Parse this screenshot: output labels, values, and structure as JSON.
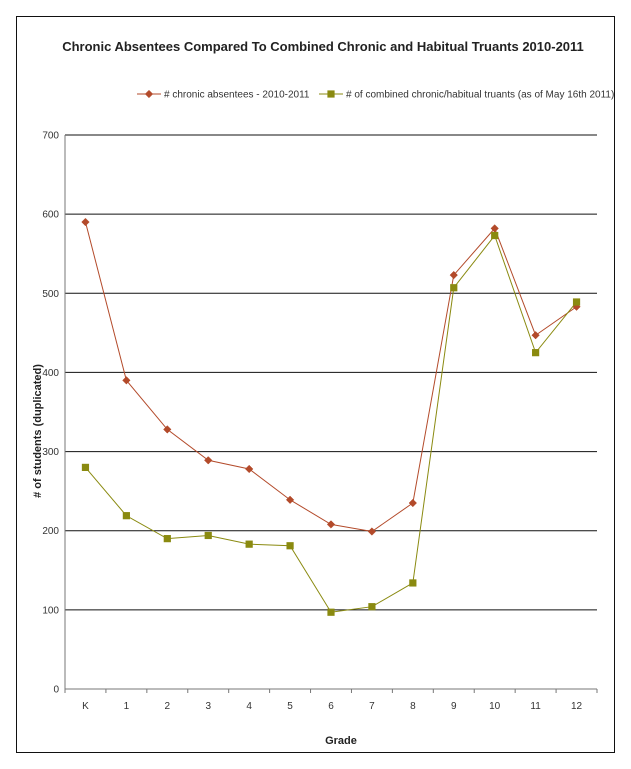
{
  "chart_data": {
    "type": "line",
    "title": "Chronic Absentees Compared To Combined Chronic and Habitual Truants 2010-2011",
    "xlabel": "Grade",
    "ylabel": "# of students (duplicated)",
    "categories": [
      "K",
      "1",
      "2",
      "3",
      "4",
      "5",
      "6",
      "7",
      "8",
      "9",
      "10",
      "11",
      "12"
    ],
    "ylim": [
      0,
      700
    ],
    "yticks": [
      0,
      100,
      200,
      300,
      400,
      500,
      600,
      700
    ],
    "grid": "horizontal",
    "legend_position": "top",
    "series": [
      {
        "name": "# chronic absentees - 2010-2011",
        "color": "#b34a2a",
        "marker": "diamond",
        "values": [
          590,
          390,
          328,
          289,
          278,
          239,
          208,
          199,
          235,
          523,
          582,
          447,
          483
        ]
      },
      {
        "name": "# of combined chronic/habitual truants (as of May 16th 2011)",
        "color": "#8a8a10",
        "marker": "square",
        "values": [
          280,
          219,
          190,
          194,
          183,
          181,
          97,
          104,
          134,
          507,
          573,
          425,
          489
        ]
      }
    ]
  }
}
